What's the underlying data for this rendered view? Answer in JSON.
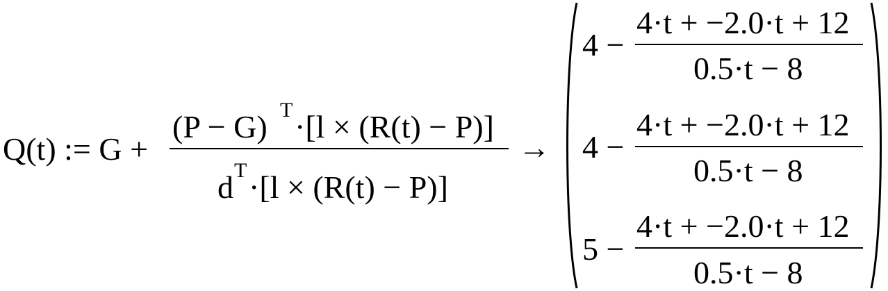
{
  "lhs": {
    "name": "Q(t) := G +",
    "numerator": {
      "head": "(P − G)",
      "sup": "T",
      "tail": "·[l × (R(t) − P)]"
    },
    "denominator": {
      "head": "d",
      "sup": "T",
      "tail": "·[l × (R(t) − P)]"
    },
    "arrow": "→"
  },
  "result": {
    "rows": [
      {
        "lead": "4 −",
        "numerator": "4·t + −2.0·t + 12",
        "denominator": "0.5·t − 8"
      },
      {
        "lead": "4 −",
        "numerator": "4·t + −2.0·t + 12",
        "denominator": "0.5·t − 8"
      },
      {
        "lead": "5 −",
        "numerator": "4·t + −2.0·t + 12",
        "denominator": "0.5·t − 8"
      }
    ]
  }
}
